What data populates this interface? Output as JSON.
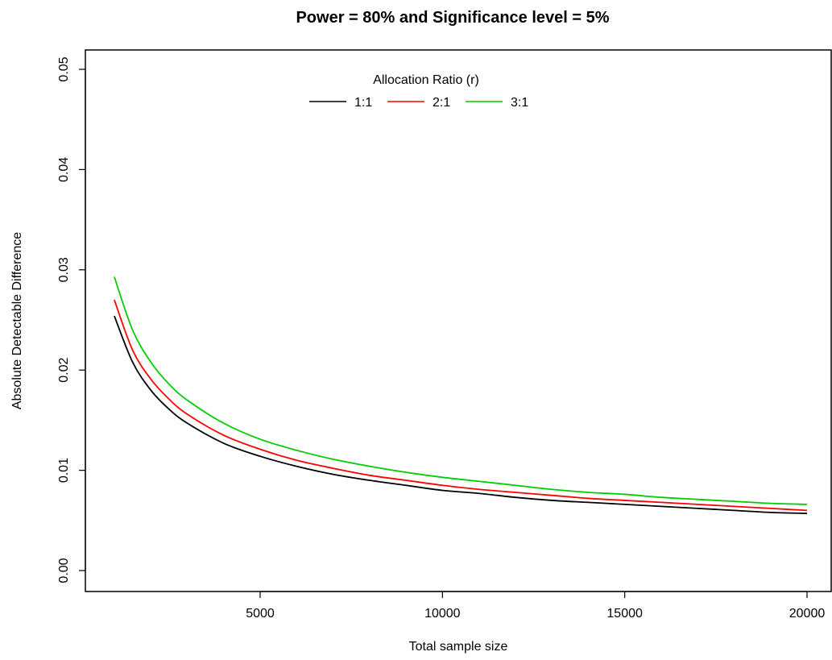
{
  "chart_data": {
    "type": "line",
    "title": "Power = 80% and Significance level = 5%",
    "xlabel": "Total sample size",
    "ylabel": "Absolute Detectable Difference",
    "xlim": [
      1000,
      20000
    ],
    "ylim": [
      0.0,
      0.05
    ],
    "xticks": [
      "5000",
      "10000",
      "15000",
      "20000"
    ],
    "yticks": [
      "0.00",
      "0.01",
      "0.02",
      "0.03",
      "0.04",
      "0.05"
    ],
    "grid": false,
    "legend": {
      "title": "Allocation Ratio (r)",
      "placement": "top-center",
      "horizontal": true
    },
    "x": [
      1000,
      1500,
      2000,
      2500,
      3000,
      4000,
      5000,
      6000,
      7000,
      8000,
      9000,
      10000,
      11000,
      12000,
      13000,
      14000,
      15000,
      16000,
      17000,
      18000,
      19000,
      20000
    ],
    "series": [
      {
        "name": "1:1",
        "color": "#000000",
        "values": [
          0.0254,
          0.0208,
          0.018,
          0.0161,
          0.0147,
          0.0127,
          0.0114,
          0.0104,
          0.0096,
          0.009,
          0.0085,
          0.008,
          0.0077,
          0.0073,
          0.007,
          0.0068,
          0.0066,
          0.0064,
          0.0062,
          0.006,
          0.0058,
          0.0057
        ]
      },
      {
        "name": "2:1",
        "color": "#ff0000",
        "values": [
          0.027,
          0.022,
          0.0191,
          0.0171,
          0.0156,
          0.0135,
          0.0121,
          0.011,
          0.0102,
          0.0095,
          0.009,
          0.0085,
          0.0081,
          0.0078,
          0.0075,
          0.0072,
          0.007,
          0.0068,
          0.0066,
          0.0064,
          0.0062,
          0.006
        ]
      },
      {
        "name": "3:1",
        "color": "#00cc00",
        "values": [
          0.0293,
          0.024,
          0.0208,
          0.0186,
          0.017,
          0.0147,
          0.0131,
          0.012,
          0.0111,
          0.0104,
          0.0098,
          0.0093,
          0.0089,
          0.0085,
          0.0081,
          0.0078,
          0.0076,
          0.0073,
          0.0071,
          0.0069,
          0.0067,
          0.0066
        ]
      }
    ]
  }
}
